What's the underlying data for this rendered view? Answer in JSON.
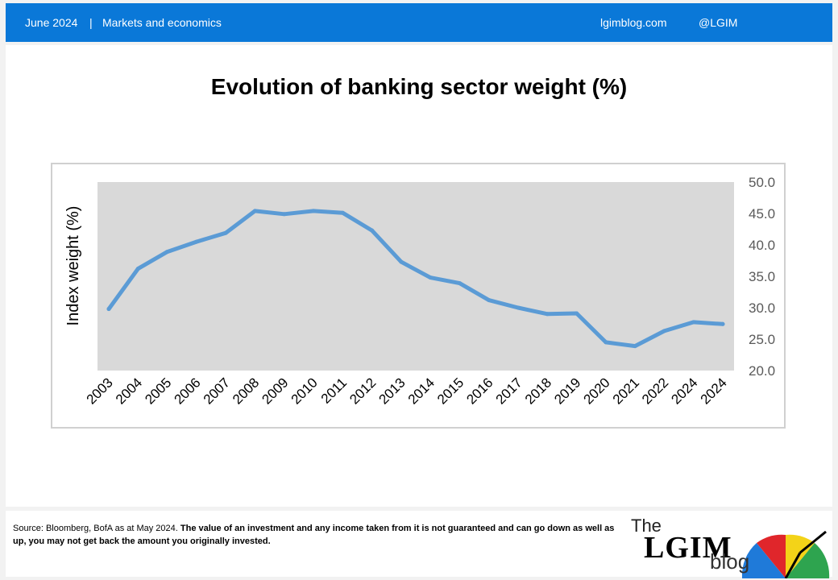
{
  "header": {
    "date": "June 2024",
    "separator": "|",
    "section": "Markets and economics",
    "website": "lgimblog.com",
    "handle": "@LGIM"
  },
  "chart_data": {
    "type": "line",
    "title": "Evolution of banking sector weight (%)",
    "ylabel": "Index weight (%)",
    "xlabel": "",
    "y_axis_side": "right",
    "ylim": [
      20,
      50
    ],
    "y_ticks": [
      "20.0",
      "25.0",
      "30.0",
      "35.0",
      "40.0",
      "45.0",
      "50.0"
    ],
    "categories": [
      "2003",
      "2004",
      "2005",
      "2006",
      "2007",
      "2008",
      "2009",
      "2010",
      "2011",
      "2012",
      "2013",
      "2014",
      "2015",
      "2016",
      "2017",
      "2018",
      "2019",
      "2020",
      "2021",
      "2022",
      "2024",
      "2024"
    ],
    "series": [
      {
        "values": [
          29.8,
          36.2,
          38.9,
          40.5,
          41.9,
          45.4,
          44.9,
          45.4,
          45.1,
          42.3,
          37.3,
          34.8,
          33.9,
          31.2,
          30.0,
          29.0,
          29.1,
          24.5,
          23.9,
          26.3,
          27.7,
          27.4
        ]
      }
    ],
    "grid": false,
    "legend": "none",
    "plot_background": "#d9d9d9",
    "line_color": "#5b9bd5"
  },
  "footer": {
    "source": "Source: Bloomberg, BofA as at May 2024.",
    "disclaimer": "The value of an investment and any income taken from it is not guaranteed and can go down as well as up, you may not get back the amount you originally invested."
  },
  "logo": {
    "the": "The",
    "lgim": "LGIM",
    "blog": "blog"
  },
  "colors": {
    "header_bg": "#0a78d8",
    "accent_red": "#e0262b",
    "accent_yellow": "#f3d318",
    "accent_green": "#2ea44f",
    "accent_blue": "#1f7ad9"
  }
}
